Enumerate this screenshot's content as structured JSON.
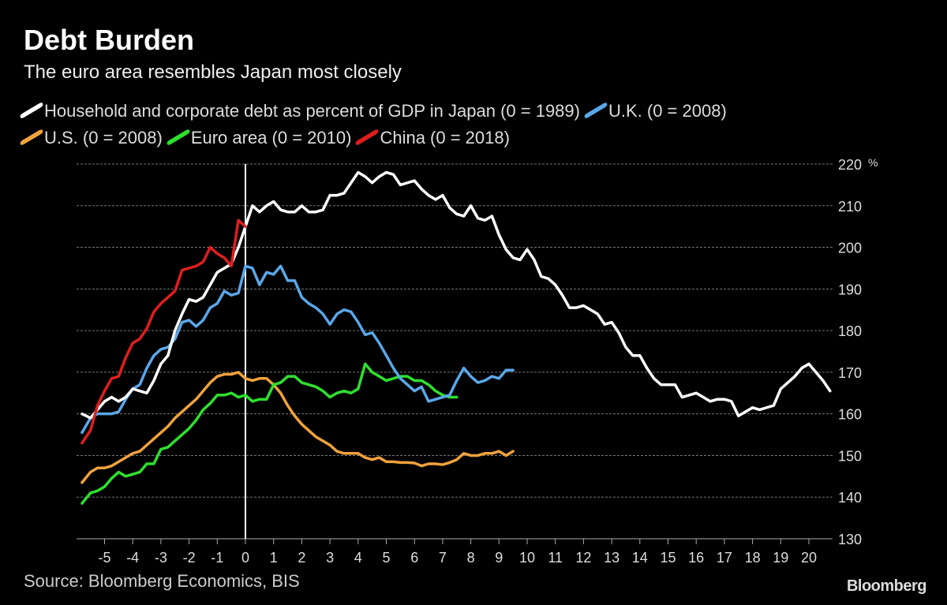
{
  "header": {
    "title": "Debt Burden",
    "subtitle": "The euro area resembles Japan most closely"
  },
  "footer": {
    "source": "Source: Bloomberg Economics, BIS",
    "logo": "Bloomberg"
  },
  "chart_data": {
    "type": "line",
    "title": "Debt Burden",
    "subtitle": "The euro area resembles Japan most closely",
    "xlabel": "",
    "ylabel": "",
    "y_unit": "%",
    "xlim": [
      -6,
      20.8
    ],
    "ylim": [
      130,
      220
    ],
    "x_ticks": [
      -5,
      -4,
      -3,
      -2,
      -1,
      0,
      1,
      2,
      3,
      4,
      5,
      6,
      7,
      8,
      9,
      10,
      11,
      12,
      13,
      14,
      15,
      16,
      17,
      18,
      19,
      20
    ],
    "y_ticks": [
      130,
      140,
      150,
      160,
      170,
      180,
      190,
      200,
      210,
      220
    ],
    "grid": "horizontal dashed",
    "vertical_marker_x": 0,
    "legend_placement": "top",
    "series": [
      {
        "name": "Household and corporate debt as percent of GDP in Japan (0 = 1989)",
        "color": "#ffffff",
        "points": [
          [
            -5.8,
            160
          ],
          [
            -5.5,
            159
          ],
          [
            -5.25,
            161
          ],
          [
            -5,
            163
          ],
          [
            -4.75,
            164
          ],
          [
            -4.5,
            163
          ],
          [
            -4.25,
            164
          ],
          [
            -4,
            166
          ],
          [
            -3.75,
            165.5
          ],
          [
            -3.5,
            165
          ],
          [
            -3.25,
            168
          ],
          [
            -3,
            172
          ],
          [
            -2.75,
            174
          ],
          [
            -2.5,
            180
          ],
          [
            -2.25,
            184
          ],
          [
            -2,
            187.5
          ],
          [
            -1.75,
            187
          ],
          [
            -1.5,
            188
          ],
          [
            -1.25,
            191
          ],
          [
            -1,
            194
          ],
          [
            -0.75,
            195
          ],
          [
            -0.5,
            196
          ],
          [
            -0.25,
            200
          ],
          [
            0,
            205
          ],
          [
            0.25,
            210
          ],
          [
            0.5,
            208.5
          ],
          [
            0.75,
            210
          ],
          [
            1,
            211
          ],
          [
            1.25,
            209
          ],
          [
            1.5,
            208.5
          ],
          [
            1.75,
            208.5
          ],
          [
            2,
            210
          ],
          [
            2.25,
            208.5
          ],
          [
            2.5,
            208.5
          ],
          [
            2.75,
            209
          ],
          [
            3,
            212.5
          ],
          [
            3.25,
            212.5
          ],
          [
            3.5,
            213
          ],
          [
            3.75,
            215.5
          ],
          [
            4,
            218
          ],
          [
            4.25,
            217
          ],
          [
            4.5,
            215.5
          ],
          [
            4.75,
            217
          ],
          [
            5,
            218
          ],
          [
            5.25,
            217.5
          ],
          [
            5.5,
            215
          ],
          [
            5.75,
            215.5
          ],
          [
            6,
            216
          ],
          [
            6.25,
            214
          ],
          [
            6.5,
            212.5
          ],
          [
            6.75,
            211.5
          ],
          [
            7,
            212.5
          ],
          [
            7.25,
            209.5
          ],
          [
            7.5,
            208
          ],
          [
            7.75,
            207.5
          ],
          [
            8,
            210
          ],
          [
            8.25,
            207
          ],
          [
            8.5,
            206.5
          ],
          [
            8.75,
            207.5
          ],
          [
            9,
            203
          ],
          [
            9.25,
            199.5
          ],
          [
            9.5,
            197.5
          ],
          [
            9.75,
            197
          ],
          [
            10,
            199.5
          ],
          [
            10.25,
            197
          ],
          [
            10.5,
            193
          ],
          [
            10.75,
            192.5
          ],
          [
            11,
            191
          ],
          [
            11.25,
            188.5
          ],
          [
            11.5,
            185.5
          ],
          [
            11.75,
            185.5
          ],
          [
            12,
            186
          ],
          [
            12.25,
            185
          ],
          [
            12.5,
            184
          ],
          [
            12.75,
            181.5
          ],
          [
            13,
            182
          ],
          [
            13.25,
            179.5
          ],
          [
            13.5,
            176
          ],
          [
            13.75,
            174
          ],
          [
            14,
            174
          ],
          [
            14.25,
            171
          ],
          [
            14.5,
            168.5
          ],
          [
            14.75,
            167
          ],
          [
            15,
            167
          ],
          [
            15.25,
            167
          ],
          [
            15.5,
            164
          ],
          [
            15.75,
            164.5
          ],
          [
            16,
            165
          ],
          [
            16.25,
            164
          ],
          [
            16.5,
            163
          ],
          [
            16.75,
            163.5
          ],
          [
            17,
            163.5
          ],
          [
            17.25,
            163
          ],
          [
            17.5,
            159.5
          ],
          [
            17.75,
            160.5
          ],
          [
            18,
            161.5
          ],
          [
            18.25,
            161
          ],
          [
            18.5,
            161.5
          ],
          [
            18.75,
            162
          ],
          [
            19,
            166
          ],
          [
            19.25,
            167.5
          ],
          [
            19.5,
            169
          ],
          [
            19.75,
            171
          ],
          [
            20,
            172
          ],
          [
            20.25,
            170
          ],
          [
            20.5,
            168
          ],
          [
            20.75,
            165.5
          ]
        ]
      },
      {
        "name": "U.K. (0 = 2008)",
        "color": "#5aa7e8",
        "points": [
          [
            -5.8,
            155.5
          ],
          [
            -5.5,
            159
          ],
          [
            -5.25,
            160
          ],
          [
            -5,
            160
          ],
          [
            -4.75,
            160
          ],
          [
            -4.5,
            160.5
          ],
          [
            -4.25,
            163.5
          ],
          [
            -4,
            166
          ],
          [
            -3.75,
            167
          ],
          [
            -3.5,
            171
          ],
          [
            -3.25,
            174
          ],
          [
            -3,
            175.5
          ],
          [
            -2.75,
            176
          ],
          [
            -2.5,
            178
          ],
          [
            -2.25,
            182
          ],
          [
            -2,
            182.5
          ],
          [
            -1.75,
            181
          ],
          [
            -1.5,
            182.5
          ],
          [
            -1.25,
            185.5
          ],
          [
            -1,
            186.5
          ],
          [
            -0.75,
            189.5
          ],
          [
            -0.5,
            188.5
          ],
          [
            -0.25,
            189
          ],
          [
            0,
            195.5
          ],
          [
            0.25,
            195
          ],
          [
            0.5,
            191
          ],
          [
            0.75,
            194
          ],
          [
            1,
            193.5
          ],
          [
            1.25,
            195.5
          ],
          [
            1.5,
            192
          ],
          [
            1.75,
            192
          ],
          [
            2,
            188
          ],
          [
            2.25,
            186.5
          ],
          [
            2.5,
            185.5
          ],
          [
            2.75,
            184
          ],
          [
            3,
            181.5
          ],
          [
            3.25,
            184
          ],
          [
            3.5,
            185
          ],
          [
            3.75,
            184.5
          ],
          [
            4,
            182
          ],
          [
            4.25,
            179
          ],
          [
            4.5,
            179.5
          ],
          [
            4.75,
            177
          ],
          [
            5,
            174
          ],
          [
            5.25,
            171
          ],
          [
            5.5,
            168.5
          ],
          [
            5.75,
            167
          ],
          [
            6,
            165.5
          ],
          [
            6.25,
            166.5
          ],
          [
            6.5,
            163
          ],
          [
            6.75,
            163.5
          ],
          [
            7,
            164
          ],
          [
            7.25,
            164.5
          ],
          [
            7.5,
            168
          ],
          [
            7.75,
            171
          ],
          [
            8,
            169
          ],
          [
            8.25,
            167.5
          ],
          [
            8.5,
            168
          ],
          [
            8.75,
            169
          ],
          [
            9,
            168.5
          ],
          [
            9.25,
            170.5
          ],
          [
            9.5,
            170.5
          ]
        ]
      },
      {
        "name": "U.S. (0 = 2008)",
        "color": "#f0a23c",
        "points": [
          [
            -5.8,
            143.5
          ],
          [
            -5.5,
            146
          ],
          [
            -5.25,
            147
          ],
          [
            -5,
            147
          ],
          [
            -4.75,
            147.5
          ],
          [
            -4.5,
            148.5
          ],
          [
            -4.25,
            149.5
          ],
          [
            -4,
            150.5
          ],
          [
            -3.75,
            151
          ],
          [
            -3.5,
            152.5
          ],
          [
            -3.25,
            154
          ],
          [
            -3,
            155.5
          ],
          [
            -2.75,
            157
          ],
          [
            -2.5,
            159
          ],
          [
            -2.25,
            160.5
          ],
          [
            -2,
            162
          ],
          [
            -1.75,
            163.5
          ],
          [
            -1.5,
            165.5
          ],
          [
            -1.25,
            167.5
          ],
          [
            -1,
            169
          ],
          [
            -0.75,
            169.5
          ],
          [
            -0.5,
            169.5
          ],
          [
            -0.25,
            170
          ],
          [
            0,
            168.5
          ],
          [
            0.25,
            168
          ],
          [
            0.5,
            168.5
          ],
          [
            0.75,
            168.5
          ],
          [
            1,
            167
          ],
          [
            1.25,
            165
          ],
          [
            1.5,
            162
          ],
          [
            1.75,
            159.5
          ],
          [
            2,
            157.5
          ],
          [
            2.25,
            156
          ],
          [
            2.5,
            154.5
          ],
          [
            2.75,
            153.5
          ],
          [
            3,
            152.5
          ],
          [
            3.25,
            151
          ],
          [
            3.5,
            150.5
          ],
          [
            3.75,
            150.5
          ],
          [
            4,
            150.5
          ],
          [
            4.25,
            149.5
          ],
          [
            4.5,
            149
          ],
          [
            4.75,
            149.5
          ],
          [
            5,
            148.5
          ],
          [
            5.25,
            148.5
          ],
          [
            5.5,
            148.3
          ],
          [
            5.75,
            148.3
          ],
          [
            6,
            148.2
          ],
          [
            6.25,
            147.5
          ],
          [
            6.5,
            148
          ],
          [
            6.75,
            148
          ],
          [
            7,
            147.8
          ],
          [
            7.25,
            148.3
          ],
          [
            7.5,
            149
          ],
          [
            7.75,
            150.5
          ],
          [
            8,
            150
          ],
          [
            8.25,
            150
          ],
          [
            8.5,
            150.5
          ],
          [
            8.75,
            150.5
          ],
          [
            9,
            151
          ],
          [
            9.25,
            150
          ],
          [
            9.5,
            151
          ]
        ]
      },
      {
        "name": "Euro area (0 = 2010)",
        "color": "#2ee02e",
        "points": [
          [
            -5.8,
            138.5
          ],
          [
            -5.5,
            141
          ],
          [
            -5.25,
            141.5
          ],
          [
            -5,
            142.5
          ],
          [
            -4.75,
            144.5
          ],
          [
            -4.5,
            146
          ],
          [
            -4.25,
            145
          ],
          [
            -4,
            145.5
          ],
          [
            -3.75,
            146
          ],
          [
            -3.5,
            148
          ],
          [
            -3.25,
            148
          ],
          [
            -3,
            151.5
          ],
          [
            -2.75,
            152
          ],
          [
            -2.5,
            153.5
          ],
          [
            -2.25,
            155
          ],
          [
            -2,
            156.5
          ],
          [
            -1.75,
            158.5
          ],
          [
            -1.5,
            161
          ],
          [
            -1.25,
            162.5
          ],
          [
            -1,
            164.5
          ],
          [
            -0.75,
            164.5
          ],
          [
            -0.5,
            165
          ],
          [
            -0.25,
            164
          ],
          [
            0,
            164.5
          ],
          [
            0.25,
            163
          ],
          [
            0.5,
            163.5
          ],
          [
            0.75,
            163.5
          ],
          [
            1,
            167
          ],
          [
            1.25,
            167.5
          ],
          [
            1.5,
            169
          ],
          [
            1.75,
            169
          ],
          [
            2,
            167.5
          ],
          [
            2.25,
            167
          ],
          [
            2.5,
            166.5
          ],
          [
            2.75,
            165.5
          ],
          [
            3,
            164
          ],
          [
            3.25,
            165
          ],
          [
            3.5,
            165.5
          ],
          [
            3.75,
            165
          ],
          [
            4,
            166
          ],
          [
            4.25,
            172
          ],
          [
            4.5,
            170
          ],
          [
            4.75,
            169
          ],
          [
            5,
            168
          ],
          [
            5.25,
            168.5
          ],
          [
            5.5,
            169
          ],
          [
            5.75,
            169
          ],
          [
            6,
            168
          ],
          [
            6.25,
            168
          ],
          [
            6.5,
            167
          ],
          [
            6.75,
            165.5
          ],
          [
            7,
            164.5
          ],
          [
            7.25,
            164
          ],
          [
            7.5,
            164
          ]
        ]
      },
      {
        "name": "China (0 = 2018)",
        "color": "#e01e1e",
        "points": [
          [
            -5.8,
            153
          ],
          [
            -5.5,
            156
          ],
          [
            -5.25,
            162
          ],
          [
            -5,
            165.5
          ],
          [
            -4.75,
            168.5
          ],
          [
            -4.5,
            169
          ],
          [
            -4.25,
            173.5
          ],
          [
            -4,
            177
          ],
          [
            -3.75,
            178
          ],
          [
            -3.5,
            180.5
          ],
          [
            -3.25,
            184.5
          ],
          [
            -3,
            186.5
          ],
          [
            -2.75,
            188
          ],
          [
            -2.5,
            189.5
          ],
          [
            -2.25,
            194.5
          ],
          [
            -2,
            195
          ],
          [
            -1.75,
            195.5
          ],
          [
            -1.5,
            196.5
          ],
          [
            -1.25,
            200
          ],
          [
            -1,
            198.5
          ],
          [
            -0.75,
            197.5
          ],
          [
            -0.5,
            195.5
          ],
          [
            -0.25,
            206.5
          ],
          [
            0,
            205
          ]
        ]
      }
    ]
  }
}
